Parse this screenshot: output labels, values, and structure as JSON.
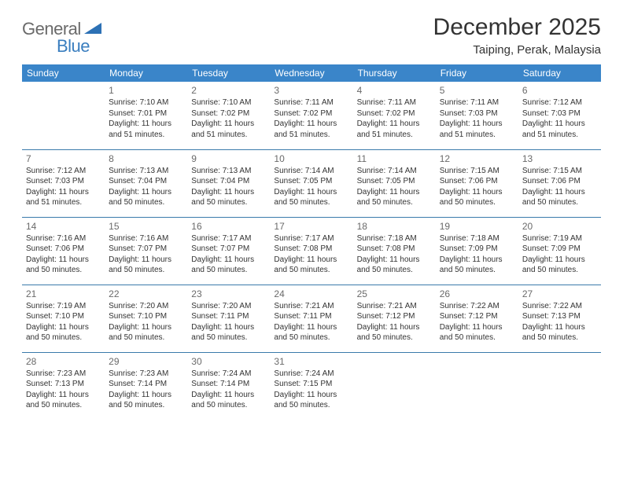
{
  "brand": {
    "text_general": "General",
    "text_blue": "Blue",
    "triangle_color": "#2d71b5"
  },
  "title": "December 2025",
  "location": "Taiping, Perak, Malaysia",
  "colors": {
    "header_bg": "#3a85c9",
    "header_text": "#ffffff",
    "row_border": "#3a7aab",
    "daynum": "#6a6a6a",
    "body_text": "#333333"
  },
  "daysOfWeek": [
    "Sunday",
    "Monday",
    "Tuesday",
    "Wednesday",
    "Thursday",
    "Friday",
    "Saturday"
  ],
  "weeks": [
    [
      null,
      {
        "n": "1",
        "sunrise": "7:10 AM",
        "sunset": "7:01 PM",
        "day": "11 hours and 51 minutes."
      },
      {
        "n": "2",
        "sunrise": "7:10 AM",
        "sunset": "7:02 PM",
        "day": "11 hours and 51 minutes."
      },
      {
        "n": "3",
        "sunrise": "7:11 AM",
        "sunset": "7:02 PM",
        "day": "11 hours and 51 minutes."
      },
      {
        "n": "4",
        "sunrise": "7:11 AM",
        "sunset": "7:02 PM",
        "day": "11 hours and 51 minutes."
      },
      {
        "n": "5",
        "sunrise": "7:11 AM",
        "sunset": "7:03 PM",
        "day": "11 hours and 51 minutes."
      },
      {
        "n": "6",
        "sunrise": "7:12 AM",
        "sunset": "7:03 PM",
        "day": "11 hours and 51 minutes."
      }
    ],
    [
      {
        "n": "7",
        "sunrise": "7:12 AM",
        "sunset": "7:03 PM",
        "day": "11 hours and 51 minutes."
      },
      {
        "n": "8",
        "sunrise": "7:13 AM",
        "sunset": "7:04 PM",
        "day": "11 hours and 50 minutes."
      },
      {
        "n": "9",
        "sunrise": "7:13 AM",
        "sunset": "7:04 PM",
        "day": "11 hours and 50 minutes."
      },
      {
        "n": "10",
        "sunrise": "7:14 AM",
        "sunset": "7:05 PM",
        "day": "11 hours and 50 minutes."
      },
      {
        "n": "11",
        "sunrise": "7:14 AM",
        "sunset": "7:05 PM",
        "day": "11 hours and 50 minutes."
      },
      {
        "n": "12",
        "sunrise": "7:15 AM",
        "sunset": "7:06 PM",
        "day": "11 hours and 50 minutes."
      },
      {
        "n": "13",
        "sunrise": "7:15 AM",
        "sunset": "7:06 PM",
        "day": "11 hours and 50 minutes."
      }
    ],
    [
      {
        "n": "14",
        "sunrise": "7:16 AM",
        "sunset": "7:06 PM",
        "day": "11 hours and 50 minutes."
      },
      {
        "n": "15",
        "sunrise": "7:16 AM",
        "sunset": "7:07 PM",
        "day": "11 hours and 50 minutes."
      },
      {
        "n": "16",
        "sunrise": "7:17 AM",
        "sunset": "7:07 PM",
        "day": "11 hours and 50 minutes."
      },
      {
        "n": "17",
        "sunrise": "7:17 AM",
        "sunset": "7:08 PM",
        "day": "11 hours and 50 minutes."
      },
      {
        "n": "18",
        "sunrise": "7:18 AM",
        "sunset": "7:08 PM",
        "day": "11 hours and 50 minutes."
      },
      {
        "n": "19",
        "sunrise": "7:18 AM",
        "sunset": "7:09 PM",
        "day": "11 hours and 50 minutes."
      },
      {
        "n": "20",
        "sunrise": "7:19 AM",
        "sunset": "7:09 PM",
        "day": "11 hours and 50 minutes."
      }
    ],
    [
      {
        "n": "21",
        "sunrise": "7:19 AM",
        "sunset": "7:10 PM",
        "day": "11 hours and 50 minutes."
      },
      {
        "n": "22",
        "sunrise": "7:20 AM",
        "sunset": "7:10 PM",
        "day": "11 hours and 50 minutes."
      },
      {
        "n": "23",
        "sunrise": "7:20 AM",
        "sunset": "7:11 PM",
        "day": "11 hours and 50 minutes."
      },
      {
        "n": "24",
        "sunrise": "7:21 AM",
        "sunset": "7:11 PM",
        "day": "11 hours and 50 minutes."
      },
      {
        "n": "25",
        "sunrise": "7:21 AM",
        "sunset": "7:12 PM",
        "day": "11 hours and 50 minutes."
      },
      {
        "n": "26",
        "sunrise": "7:22 AM",
        "sunset": "7:12 PM",
        "day": "11 hours and 50 minutes."
      },
      {
        "n": "27",
        "sunrise": "7:22 AM",
        "sunset": "7:13 PM",
        "day": "11 hours and 50 minutes."
      }
    ],
    [
      {
        "n": "28",
        "sunrise": "7:23 AM",
        "sunset": "7:13 PM",
        "day": "11 hours and 50 minutes."
      },
      {
        "n": "29",
        "sunrise": "7:23 AM",
        "sunset": "7:14 PM",
        "day": "11 hours and 50 minutes."
      },
      {
        "n": "30",
        "sunrise": "7:24 AM",
        "sunset": "7:14 PM",
        "day": "11 hours and 50 minutes."
      },
      {
        "n": "31",
        "sunrise": "7:24 AM",
        "sunset": "7:15 PM",
        "day": "11 hours and 50 minutes."
      },
      null,
      null,
      null
    ]
  ],
  "labels": {
    "sunrise": "Sunrise: ",
    "sunset": "Sunset: ",
    "daylight": "Daylight: "
  }
}
